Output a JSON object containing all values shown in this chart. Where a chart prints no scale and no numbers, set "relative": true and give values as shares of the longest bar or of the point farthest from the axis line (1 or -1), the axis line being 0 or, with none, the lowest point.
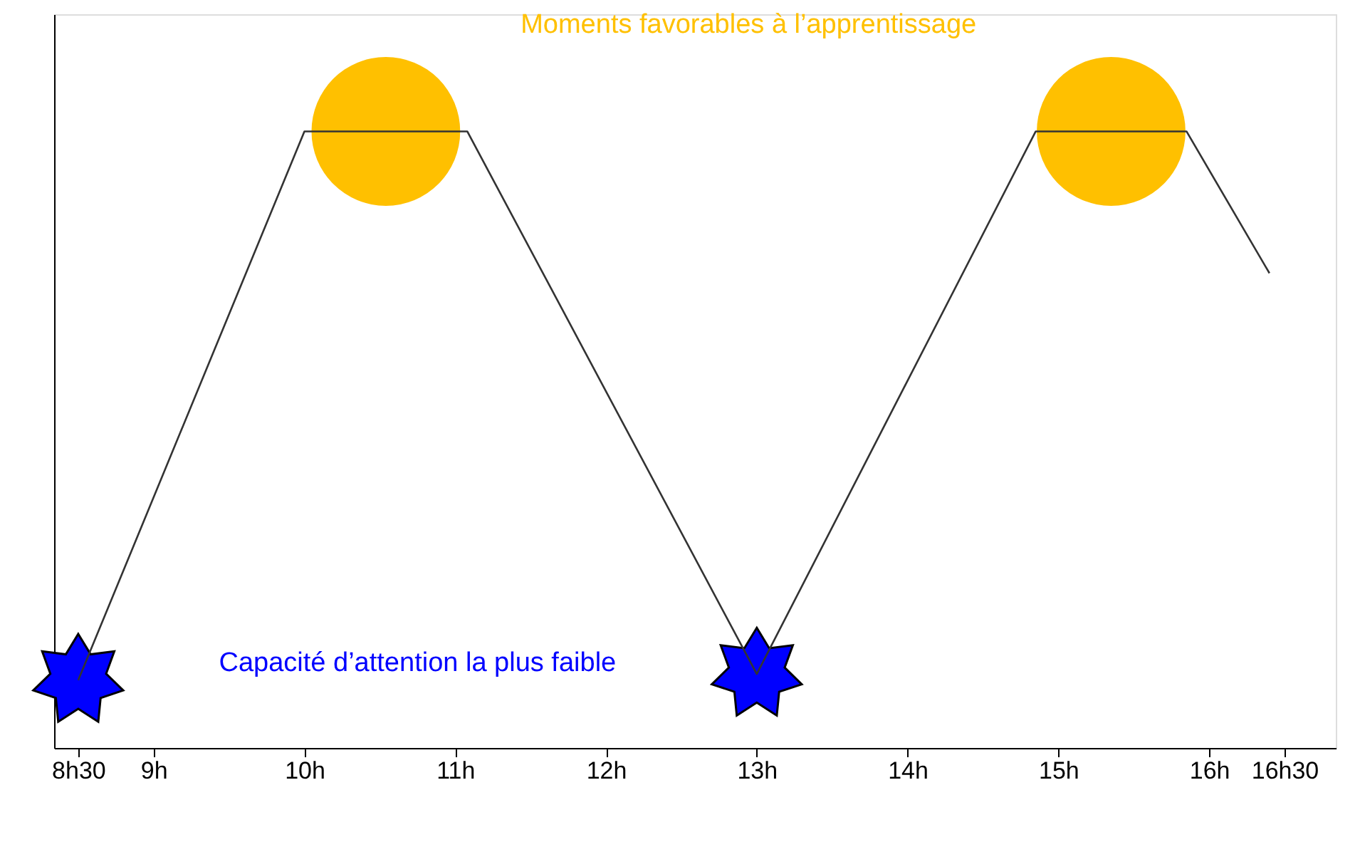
{
  "chart_data": {
    "type": "line",
    "relative": true,
    "grid": false,
    "legend": false,
    "xlim": [
      8.34,
      16.84
    ],
    "xticks": [
      {
        "value": 8.5,
        "label": "8h30"
      },
      {
        "value": 9,
        "label": "9h"
      },
      {
        "value": 10,
        "label": "10h"
      },
      {
        "value": 11,
        "label": "11h"
      },
      {
        "value": 12,
        "label": "12h"
      },
      {
        "value": 13,
        "label": "13h"
      },
      {
        "value": 14,
        "label": "14h"
      },
      {
        "value": 15,
        "label": "15h"
      },
      {
        "value": 16,
        "label": "16h"
      },
      {
        "value": 16.5,
        "label": "16h30"
      }
    ],
    "series": [
      {
        "color": "#333333",
        "marker": "none",
        "x": [
          8.5,
          10,
          11.08,
          13,
          14.85,
          15.85,
          16.4
        ],
        "values": [
          0.11,
          1,
          1,
          0.12,
          1,
          1,
          0.77
        ]
      },
      {
        "type": "scatter",
        "name": "Moments favorables à l’apprentissage",
        "color": "#ffc000",
        "marker": "circle",
        "x": [
          10.54,
          15.35
        ],
        "values": [
          1,
          1
        ]
      },
      {
        "type": "scatter",
        "name": "Capacité d’attention la plus faible",
        "color": "#0000ff",
        "marker": "star",
        "x": [
          8.5,
          13
        ],
        "values": [
          0.11,
          0.12
        ]
      }
    ]
  }
}
